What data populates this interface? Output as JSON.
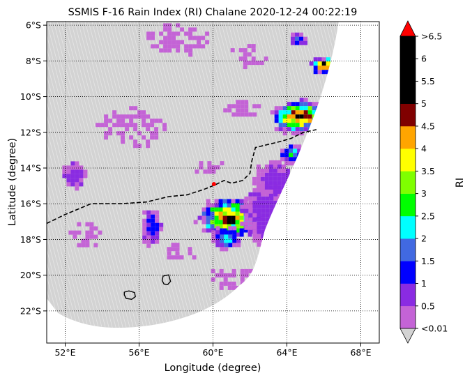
{
  "title": "SSMIS F-16 Rain Index (RI) Chalane 2020-12-24 00:22:19",
  "xlabel": "Longitude (degree)",
  "ylabel": "Latitude (degree)",
  "lon_range": [
    51.0,
    69.0
  ],
  "lat_range": [
    -23.8,
    -5.8
  ],
  "lon_ticks": [
    {
      "value": 52,
      "label": "52°E"
    },
    {
      "value": 56,
      "label": "56°E"
    },
    {
      "value": 60,
      "label": "60°E"
    },
    {
      "value": 64,
      "label": "64°E"
    },
    {
      "value": 68,
      "label": "68°E"
    }
  ],
  "lat_ticks": [
    {
      "value": -6,
      "label": "6°S"
    },
    {
      "value": -8,
      "label": "8°S"
    },
    {
      "value": -10,
      "label": "10°S"
    },
    {
      "value": -12,
      "label": "12°S"
    },
    {
      "value": -14,
      "label": "14°S"
    },
    {
      "value": -16,
      "label": "16°S"
    },
    {
      "value": -18,
      "label": "18°S"
    },
    {
      "value": -20,
      "label": "20°S"
    },
    {
      "value": -22,
      "label": "22°S"
    }
  ],
  "colorbar": {
    "label": "RI",
    "under_color": "#d3d3d3",
    "over_color": "#ff0000",
    "levels": [
      {
        "label": "<0.01",
        "color": "#c463d6"
      },
      {
        "label": "0.5",
        "color": "#8a2be2"
      },
      {
        "label": "1",
        "color": "#0000ff"
      },
      {
        "label": "1.5",
        "color": "#4169e1"
      },
      {
        "label": "2",
        "color": "#00ffff"
      },
      {
        "label": "2.5",
        "color": "#00ff00"
      },
      {
        "label": "3",
        "color": "#7fff00"
      },
      {
        "label": "3.5",
        "color": "#ffff00"
      },
      {
        "label": "4",
        "color": "#ffa500"
      },
      {
        "label": "4.5",
        "color": "#800000"
      },
      {
        "label": "5",
        "color": "#000000"
      },
      {
        "label": "5.5",
        "color": "#000000"
      },
      {
        "label": "6",
        "color": "#000000"
      },
      {
        "label": ">6.5",
        "color": "#ff0000"
      }
    ]
  },
  "storm_center": {
    "lon": 60.05,
    "lat": -14.9,
    "color": "#ff0000"
  },
  "storm_track": [
    [
      51.0,
      -17.1
    ],
    [
      52.0,
      -16.6
    ],
    [
      53.4,
      -16.0
    ],
    [
      55.0,
      -16.0
    ],
    [
      56.4,
      -15.9
    ],
    [
      57.6,
      -15.6
    ],
    [
      58.6,
      -15.5
    ],
    [
      59.5,
      -15.2
    ],
    [
      60.1,
      -14.95
    ],
    [
      60.6,
      -14.7
    ],
    [
      61.0,
      -14.85
    ],
    [
      61.6,
      -14.7
    ],
    [
      62.0,
      -14.3
    ],
    [
      62.1,
      -13.6
    ],
    [
      62.3,
      -12.85
    ],
    [
      62.9,
      -12.7
    ],
    [
      63.5,
      -12.55
    ],
    [
      64.2,
      -12.35
    ],
    [
      64.9,
      -12.0
    ],
    [
      65.6,
      -11.85
    ]
  ],
  "islands": [
    {
      "name": "Reunion",
      "points": [
        [
          55.2,
          -20.95
        ],
        [
          55.45,
          -20.88
        ],
        [
          55.75,
          -20.97
        ],
        [
          55.8,
          -21.2
        ],
        [
          55.6,
          -21.35
        ],
        [
          55.3,
          -21.3
        ],
        [
          55.2,
          -21.1
        ]
      ]
    },
    {
      "name": "Mauritius",
      "points": [
        [
          57.3,
          -20.05
        ],
        [
          57.6,
          -19.98
        ],
        [
          57.7,
          -20.35
        ],
        [
          57.55,
          -20.52
        ],
        [
          57.35,
          -20.5
        ],
        [
          57.25,
          -20.3
        ]
      ]
    }
  ],
  "swath": {
    "west_lat_top": -5.8,
    "west_lat_bottom": -21.2,
    "south_lon_left": 52.0,
    "south_lon_right": 62.2,
    "edge_lon_top": 66.7,
    "edge_lon_bottom": 62.2
  },
  "rain_clusters": [
    {
      "lon": 60.8,
      "lat": -16.7,
      "rlon": 1.6,
      "rlat": 1.1,
      "peak": 10
    },
    {
      "lon": 60.6,
      "lat": -17.8,
      "rlon": 0.7,
      "rlat": 0.6,
      "peak": 4
    },
    {
      "lon": 64.6,
      "lat": -11.0,
      "rlon": 1.5,
      "rlat": 0.9,
      "peak": 10
    },
    {
      "lon": 64.2,
      "lat": -13.1,
      "rlon": 0.6,
      "rlat": 0.5,
      "peak": 5
    },
    {
      "lon": 65.9,
      "lat": -8.15,
      "rlon": 0.7,
      "rlat": 0.45,
      "peak": 10
    },
    {
      "lon": 64.5,
      "lat": -6.7,
      "rlon": 0.4,
      "rlat": 0.4,
      "peak": 3
    },
    {
      "lon": 56.6,
      "lat": -17.2,
      "rlon": 0.5,
      "rlat": 1.0,
      "peak": 2
    },
    {
      "lon": 52.4,
      "lat": -14.3,
      "rlon": 0.6,
      "rlat": 0.7,
      "peak": 1
    },
    {
      "lon": 62.8,
      "lat": -16.5,
      "rlon": 1.2,
      "rlat": 1.6,
      "peak": 1
    },
    {
      "lon": 63.2,
      "lat": -14.5,
      "rlon": 1.0,
      "rlat": 0.9,
      "peak": 1
    },
    {
      "lon": 61.5,
      "lat": -10.6,
      "rlon": 0.9,
      "rlat": 0.5,
      "peak": 0
    },
    {
      "lon": 55.5,
      "lat": -11.6,
      "rlon": 1.6,
      "rlat": 1.0,
      "peak": 0
    },
    {
      "lon": 57.8,
      "lat": -6.7,
      "rlon": 1.6,
      "rlat": 0.8,
      "peak": 0
    },
    {
      "lon": 61.8,
      "lat": -7.6,
      "rlon": 1.0,
      "rlat": 0.6,
      "peak": 0
    },
    {
      "lon": 58.0,
      "lat": -18.6,
      "rlon": 0.9,
      "rlat": 0.5,
      "peak": 0
    },
    {
      "lon": 61.0,
      "lat": -20.1,
      "rlon": 1.2,
      "rlat": 0.7,
      "peak": 0
    },
    {
      "lon": 53.0,
      "lat": -17.6,
      "rlon": 0.8,
      "rlat": 0.8,
      "peak": 0
    },
    {
      "lon": 59.7,
      "lat": -13.9,
      "rlon": 0.7,
      "rlat": 0.4,
      "peak": 0
    }
  ]
}
